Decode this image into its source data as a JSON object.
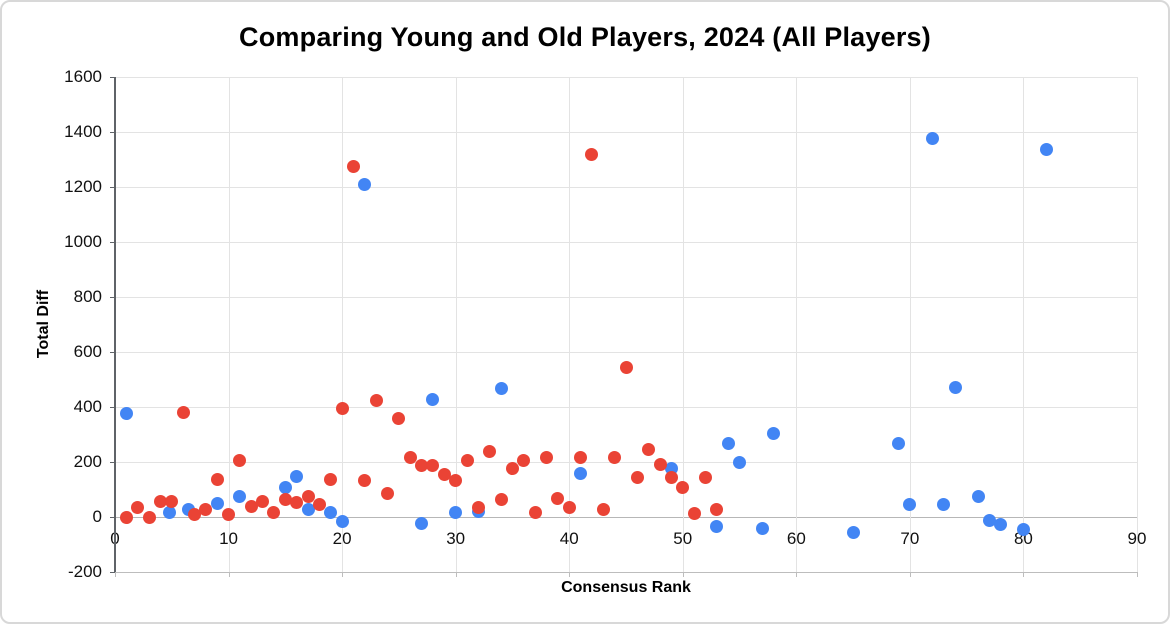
{
  "chart_data": {
    "type": "scatter",
    "title": "Comparing Young and Old Players, 2024 (All Players)",
    "xlabel": "Consensus Rank",
    "ylabel": "Total Diff",
    "xlim": [
      0,
      90
    ],
    "ylim": [
      -200,
      1600
    ],
    "x_ticks": [
      0,
      10,
      20,
      30,
      40,
      50,
      60,
      70,
      80,
      90
    ],
    "y_ticks": [
      -200,
      0,
      200,
      400,
      600,
      800,
      1000,
      1200,
      1400,
      1600
    ],
    "grid": true,
    "legend_position": "none",
    "grid_color": "#e3e3e3",
    "zero_line_color": "#b7b7b7",
    "axis_line_color": "#5f6368",
    "series": [
      {
        "name": "blue",
        "color": "#4285F4",
        "points": [
          [
            1,
            378
          ],
          [
            4.8,
            18
          ],
          [
            6.5,
            26
          ],
          [
            9,
            50
          ],
          [
            11,
            76
          ],
          [
            15,
            106
          ],
          [
            16,
            148
          ],
          [
            17,
            29
          ],
          [
            19,
            18
          ],
          [
            20,
            -15
          ],
          [
            22,
            1208
          ],
          [
            27,
            -22
          ],
          [
            28,
            429
          ],
          [
            30,
            15
          ],
          [
            32,
            20
          ],
          [
            34,
            466
          ],
          [
            41,
            160
          ],
          [
            49,
            177
          ],
          [
            53,
            -36
          ],
          [
            54,
            268
          ],
          [
            55,
            200
          ],
          [
            57,
            -40
          ],
          [
            58,
            302
          ],
          [
            65,
            -55
          ],
          [
            69,
            269
          ],
          [
            70,
            44
          ],
          [
            72,
            1375
          ],
          [
            73,
            44
          ],
          [
            74,
            470
          ],
          [
            76,
            73
          ],
          [
            77,
            -11
          ],
          [
            78,
            -29
          ],
          [
            80,
            -47
          ],
          [
            82,
            1338
          ]
        ]
      },
      {
        "name": "red",
        "color": "#EA4335",
        "points": [
          [
            1,
            0
          ],
          [
            2,
            33
          ],
          [
            3,
            0
          ],
          [
            4,
            55
          ],
          [
            5,
            58
          ],
          [
            6,
            380
          ],
          [
            7,
            10
          ],
          [
            8,
            29
          ],
          [
            9,
            137
          ],
          [
            10,
            8
          ],
          [
            11,
            205
          ],
          [
            12,
            40
          ],
          [
            13,
            55
          ],
          [
            14,
            15
          ],
          [
            15,
            62
          ],
          [
            16,
            51
          ],
          [
            17,
            73
          ],
          [
            18,
            44
          ],
          [
            19,
            135
          ],
          [
            20,
            395
          ],
          [
            21,
            1275
          ],
          [
            22,
            133
          ],
          [
            23,
            425
          ],
          [
            24,
            87
          ],
          [
            25,
            357
          ],
          [
            26,
            218
          ],
          [
            27,
            186
          ],
          [
            28,
            189
          ],
          [
            29,
            153
          ],
          [
            30,
            131
          ],
          [
            31,
            204
          ],
          [
            32,
            33
          ],
          [
            33,
            240
          ],
          [
            34,
            65
          ],
          [
            35,
            175
          ],
          [
            36,
            207
          ],
          [
            37,
            15
          ],
          [
            38,
            218
          ],
          [
            39,
            69
          ],
          [
            40,
            33
          ],
          [
            41,
            218
          ],
          [
            42,
            1320
          ],
          [
            43,
            29
          ],
          [
            44,
            215
          ],
          [
            45,
            542
          ],
          [
            46,
            142
          ],
          [
            47,
            244
          ],
          [
            48,
            192
          ],
          [
            49,
            142
          ],
          [
            50,
            106
          ],
          [
            51,
            11
          ],
          [
            52,
            142
          ],
          [
            53,
            29
          ]
        ]
      }
    ]
  }
}
